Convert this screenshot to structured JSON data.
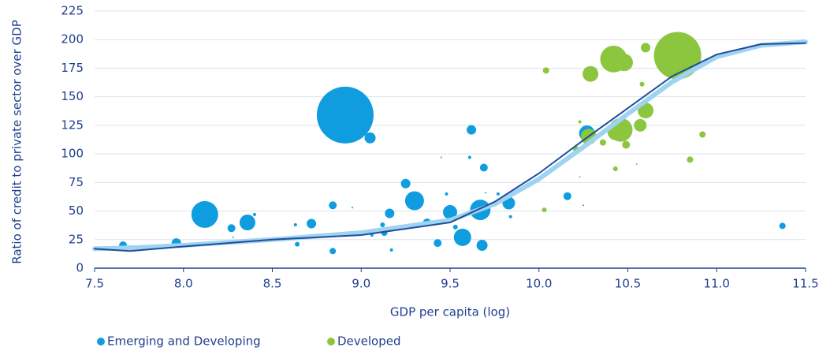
{
  "chart_data": {
    "type": "scatter",
    "x_label": "GDP per capita (log)",
    "y_label": "Ratio of credit to private sector over GDP",
    "xlim": [
      7.5,
      11.5
    ],
    "xticks": [
      7.5,
      {
        "value": 8,
        "label": "8.0"
      },
      8.5,
      {
        "value": 9,
        "label": "9.0"
      },
      9.5,
      {
        "value": 10,
        "label": "10.0"
      },
      10.5,
      {
        "value": 11,
        "label": "11.0"
      },
      11.5
    ],
    "ylim": [
      0,
      225
    ],
    "yticks": [
      0,
      25,
      50,
      75,
      100,
      125,
      150,
      175,
      200,
      225
    ],
    "grid": true,
    "legend": "bottom",
    "series": [
      {
        "name": "Emerging and Developing",
        "color": "#0f9de0",
        "x": [
          7.66,
          7.96,
          8.12,
          8.27,
          8.28,
          8.36,
          8.4,
          8.47,
          8.63,
          8.64,
          8.72,
          8.84,
          8.84,
          8.91,
          8.95,
          9.05,
          9.06,
          9.12,
          9.13,
          9.16,
          9.17,
          9.25,
          9.3,
          9.37,
          9.43,
          9.45,
          9.48,
          9.5,
          9.53,
          9.57,
          9.61,
          9.62,
          9.67,
          9.68,
          9.69,
          9.7,
          9.77,
          9.83,
          9.84,
          10.16,
          10.25,
          10.27,
          11.37
        ],
        "values": [
          20,
          22,
          47,
          35,
          27,
          40,
          47,
          25,
          38,
          21,
          39,
          55,
          15,
          134,
          53,
          114,
          29,
          38,
          31,
          48,
          16,
          74,
          59,
          40,
          22,
          97,
          65,
          49,
          36,
          27,
          97,
          121,
          51,
          20,
          88,
          66,
          65,
          57,
          45,
          63,
          55,
          118,
          37
        ],
        "sizes": [
          5,
          6,
          17,
          5,
          1,
          10,
          2,
          1,
          2,
          3,
          6,
          5,
          4,
          36,
          1,
          7,
          2,
          3,
          4,
          6,
          2,
          6,
          12,
          5,
          5,
          1,
          2,
          9,
          3,
          11,
          2,
          6,
          13,
          7,
          5,
          1,
          2,
          8,
          2,
          5,
          1,
          10,
          4
        ]
      },
      {
        "name": "Developed",
        "color": "#8cc63f",
        "x": [
          10.03,
          10.04,
          10.21,
          10.23,
          10.23,
          10.28,
          10.29,
          10.36,
          10.42,
          10.43,
          10.46,
          10.43,
          10.48,
          10.49,
          10.55,
          10.57,
          10.58,
          10.6,
          10.6,
          10.78,
          10.85,
          10.92
        ],
        "values": [
          51,
          173,
          104,
          80,
          128,
          115,
          170,
          110,
          183,
          87,
          121,
          119,
          180,
          108,
          91,
          125,
          161,
          138,
          193,
          186,
          95,
          117
        ],
        "sizes": [
          3,
          4,
          4,
          1,
          2,
          10,
          10,
          4,
          17,
          3,
          15,
          10,
          11,
          5,
          1,
          8,
          3,
          10,
          6,
          30,
          4,
          4
        ]
      }
    ],
    "lines": [
      {
        "color": "#9fd3f2",
        "x": [
          7.5,
          7.75,
          8.0,
          8.5,
          9.0,
          9.5,
          9.75,
          10.0,
          10.25,
          10.5,
          10.75,
          11.0,
          11.25,
          11.5
        ],
        "values": [
          17,
          18,
          20,
          25,
          31,
          42,
          56,
          78,
          106,
          135,
          163,
          185,
          195,
          198
        ]
      },
      {
        "color": "#1f4e9c",
        "x": [
          7.5,
          7.7,
          8.0,
          8.5,
          9.0,
          9.5,
          9.75,
          10.0,
          10.25,
          10.5,
          10.75,
          11.0,
          11.25,
          11.5
        ],
        "values": [
          17,
          15,
          19,
          25,
          29,
          40,
          58,
          83,
          112,
          140,
          168,
          187,
          196,
          197
        ]
      }
    ]
  }
}
